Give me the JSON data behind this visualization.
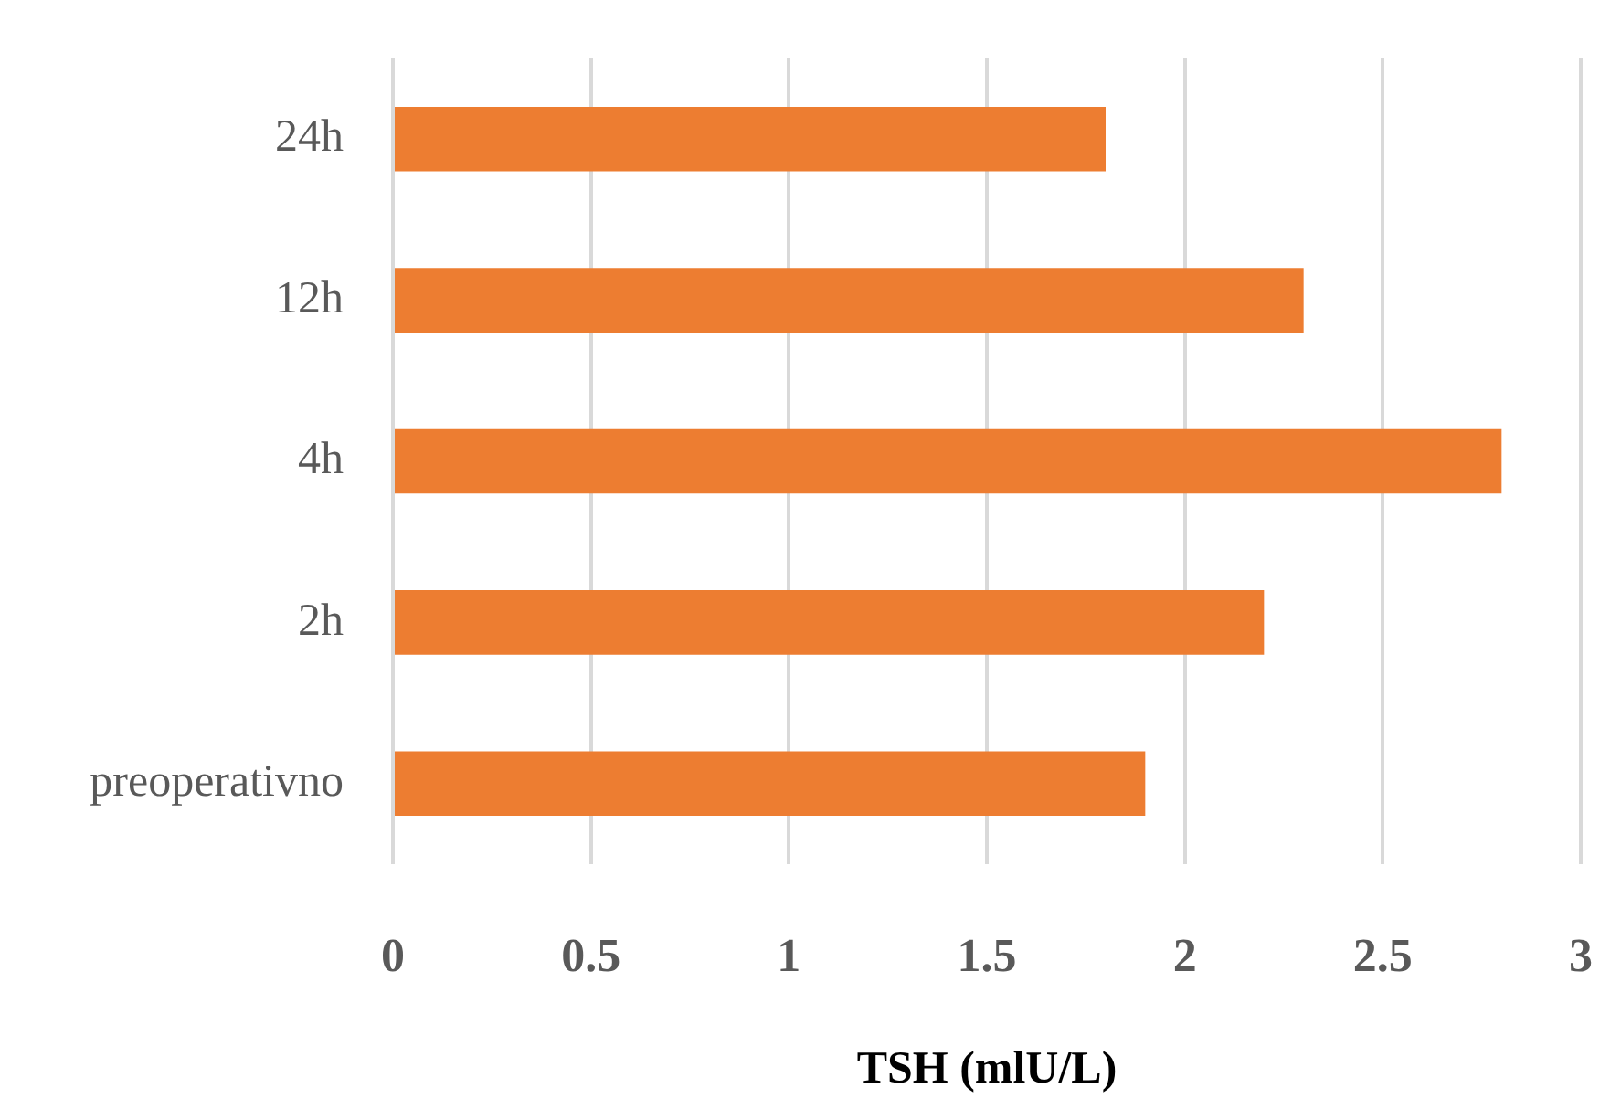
{
  "chart_data": {
    "type": "bar",
    "orientation": "horizontal",
    "categories": [
      "24h",
      "12h",
      "4h",
      "2h",
      "preoperativno"
    ],
    "values": [
      1.8,
      2.3,
      2.8,
      2.2,
      1.9
    ],
    "color": "#ed7d31",
    "xlabel": "TSH (mlU/L)",
    "xlim": [
      0,
      3
    ],
    "xticks": [
      0,
      0.5,
      1,
      1.5,
      2,
      2.5,
      3
    ],
    "grid": "x"
  }
}
